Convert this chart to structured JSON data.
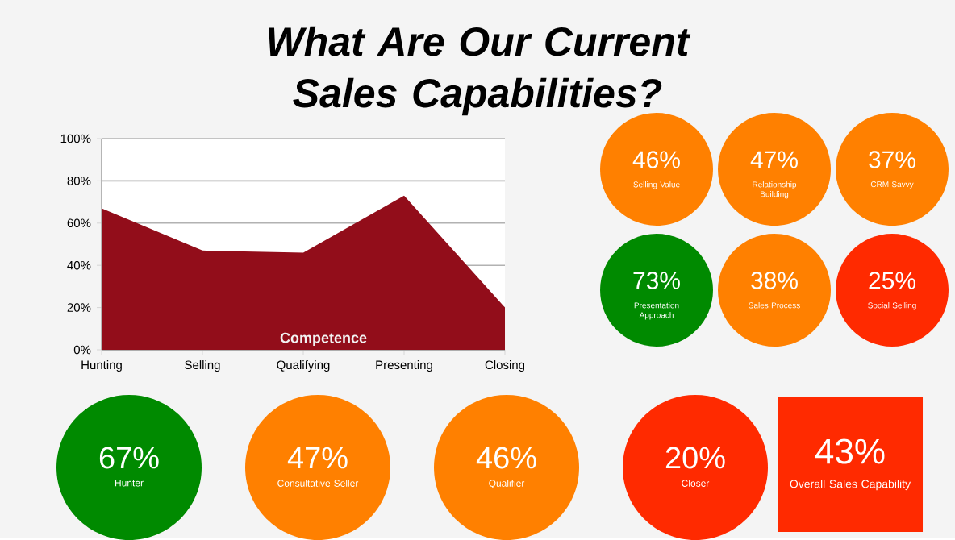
{
  "chart_data": [
    {
      "type": "area",
      "title": "What Are Our Current Sales Capabilities?",
      "categories": [
        "Hunting",
        "Selling",
        "Qualifying",
        "Presenting",
        "Closing"
      ],
      "values": [
        67,
        47,
        46,
        73,
        20
      ],
      "color": "#920d1a",
      "ylim": [
        0,
        100
      ],
      "yticks": [
        {
          "value": 0,
          "label": "0%"
        },
        {
          "value": 20,
          "label": "20%"
        },
        {
          "value": 40,
          "label": "40%"
        },
        {
          "value": 60,
          "label": "60%"
        },
        {
          "value": 80,
          "label": "80%"
        },
        {
          "value": 100,
          "label": "100%"
        }
      ],
      "grid": "y",
      "annotations": [
        "Competence"
      ]
    },
    {
      "type": "other",
      "categories": [
        "Selling Value",
        "Relationship Building",
        "CRM Savvy",
        "Presentation Approach",
        "Sales Process",
        "Social Selling",
        "Hunter",
        "Consultative Seller",
        "Qualifier",
        "Closer"
      ],
      "values": [
        46,
        47,
        37,
        73,
        38,
        25,
        67,
        47,
        46,
        20
      ],
      "value_labels": [
        "46%",
        "47%",
        "37%",
        "73%",
        "38%",
        "25%",
        "67%",
        "47%",
        "46%",
        "20%"
      ],
      "colors": [
        "#ff8000",
        "#ff8000",
        "#ff8000",
        "#008a00",
        "#ff8000",
        "#ff2a00",
        "#008a00",
        "#ff8000",
        "#ff8000",
        "#ff2a00"
      ]
    },
    {
      "type": "other",
      "categories": [
        "Overall Sales Capability"
      ],
      "values": [
        43
      ],
      "value_labels": [
        "43%"
      ],
      "colors": [
        "#ff2a00"
      ]
    }
  ]
}
